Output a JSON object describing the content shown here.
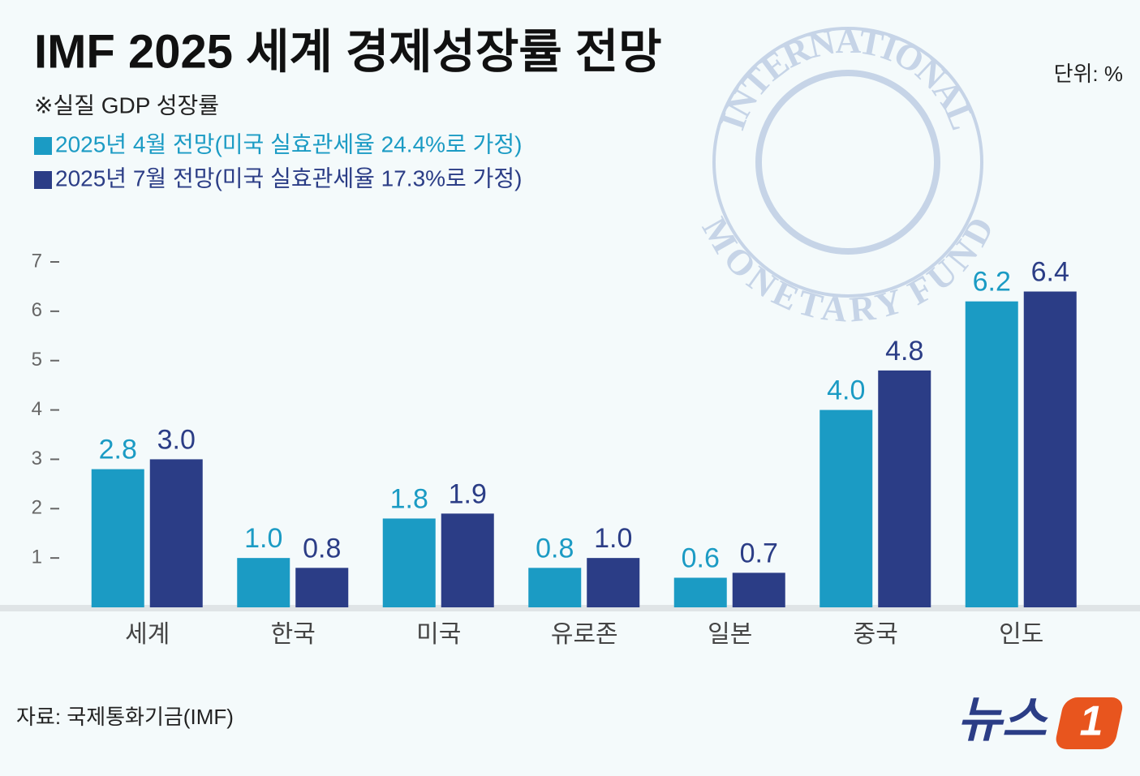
{
  "chart_data": {
    "type": "bar",
    "title": "IMF 2025 세계 경제성장률 전망",
    "subtitle": "※실질 GDP 성장률",
    "unit": "단위: %",
    "source": "자료: 국제통화기금(IMF)",
    "logo_text": "뉴스",
    "logo_mark": "1",
    "watermark_top": "INTERNATIONAL",
    "watermark_bottom": "MONETARY FUND",
    "categories": [
      "세계",
      "한국",
      "미국",
      "유로존",
      "일본",
      "중국",
      "인도"
    ],
    "series": [
      {
        "name": "2025년 4월 전망(미국 실효관세율 24.4%로 가정)",
        "color": "#1b9bc4",
        "values": [
          2.8,
          1,
          1.8,
          0.8,
          0.6,
          4,
          6.2
        ],
        "value_labels": [
          "2.8",
          "1.0",
          "1.8",
          "0.8",
          "0.6",
          "4.0",
          "6.2"
        ]
      },
      {
        "name": "2025년 7월 전망(미국 실효관세율 17.3%로 가정)",
        "color": "#2b3d86",
        "values": [
          3,
          0.8,
          1.9,
          1,
          0.7,
          4.8,
          6.4
        ],
        "value_labels": [
          "3.0",
          "0.8",
          "1.9",
          "1.0",
          "0.7",
          "4.8",
          "6.4"
        ]
      }
    ],
    "ylim": [
      0,
      7
    ],
    "yticks": [
      1,
      2,
      3,
      4,
      5,
      6,
      7
    ],
    "grid": false
  }
}
